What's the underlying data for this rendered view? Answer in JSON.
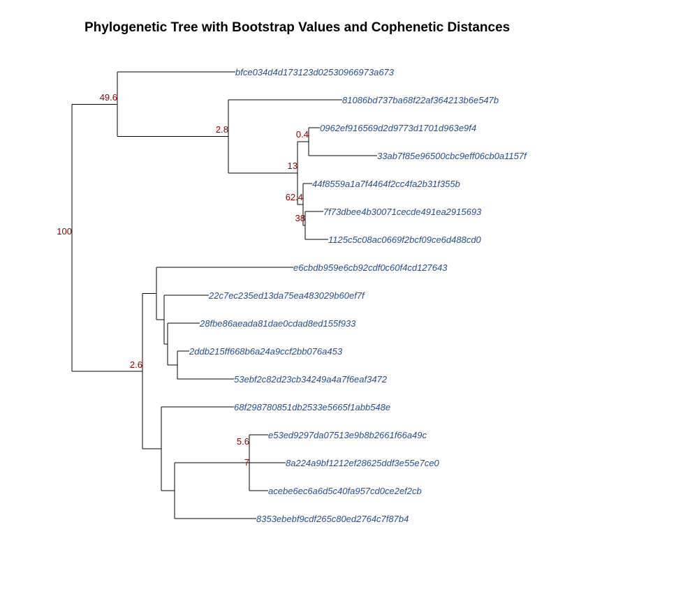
{
  "title": "Phylogenetic Tree with Bootstrap Values and Cophenetic Distances",
  "colors": {
    "tip_label": "#1f4e8c",
    "bootstrap_label": "#8b0000",
    "branch": "#000000"
  },
  "tips": [
    "bfce034d4d173123d02530966973a673",
    "81086bd737ba68f22af364213b6e547b",
    "0962ef916569d2d9773d1701d963e9f4",
    "33ab7f85e96500cbc9eff06cb0a1157f",
    "44f8559a1a7f4464f2cc4fa2b31f355b",
    "7f73dbee4b30071cecde491ea2915693",
    "1125c5c08ac0669f2bcf09ce6d488cd0",
    "e6cbdb959e6cb92cdf0c60f4cd127643",
    "22c7ec235ed13da75ea483029b60ef7f",
    "28fbe86aeada81dae0cdad8ed155f933",
    "2ddb215ff668b6a24a9ccf2bb076a453",
    "53ebf2c82d23cb34249a4a7f6eaf3472",
    "68f298780851db2533e5665f1abb548e",
    "e53ed9297da07513e9b8b2661f66a49c",
    "8a224a9bf1212ef28625ddf3e55e7ce0",
    "acebe6ec6a6d5c40fa957cd0ce2ef2cb",
    "8353ebebf9cdf265c80ed2764c7f87b4"
  ],
  "bootstrap_labels": [
    "49.6",
    "2.8",
    "0.4",
    "13",
    "62.4",
    "38",
    "100",
    "2.6",
    "5.6",
    "7"
  ]
}
